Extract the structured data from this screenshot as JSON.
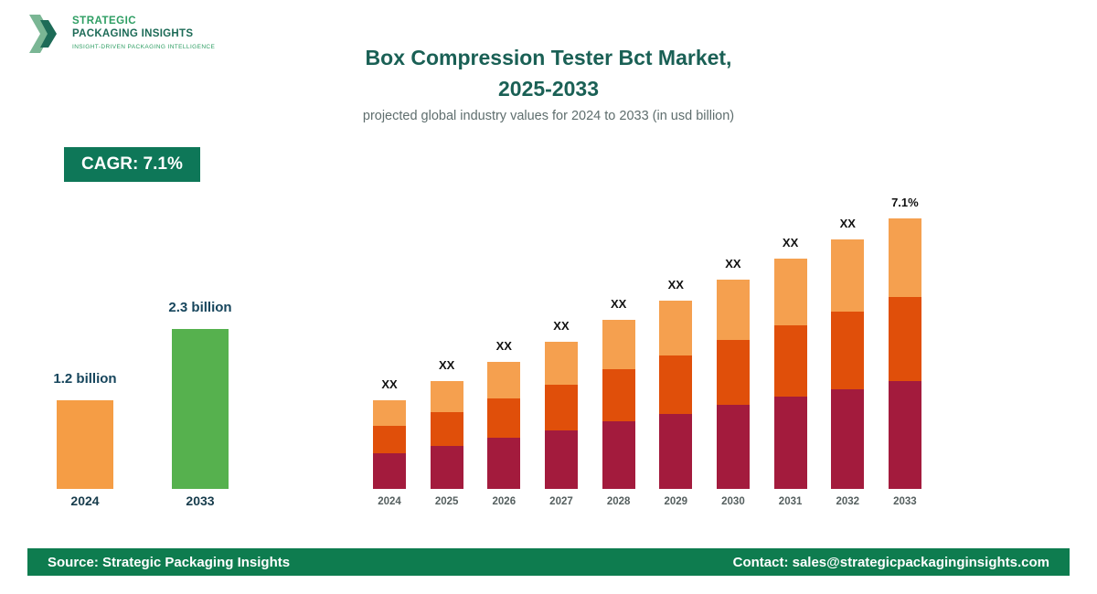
{
  "logo": {
    "line1": "STRATEGIC",
    "line2": "PACKAGING INSIGHTS",
    "tagline": "INSIGHT-DRIVEN PACKAGING INTELLIGENCE",
    "chevron_light_color": "#7ab694",
    "chevron_dark_color": "#1d6b57"
  },
  "header": {
    "title_line1": "Box Compression Tester Bct Market,",
    "title_line2": "2025-2033",
    "subtitle": "projected global industry values for 2024 to 2033 (in usd billion)"
  },
  "cagr_badge": {
    "label": "CAGR: 7.1%"
  },
  "summary_chart": {
    "bars": [
      {
        "year": "2024",
        "value_label": "1.2 billion",
        "color": "#f59d45",
        "height": 97
      },
      {
        "year": "2033",
        "value_label": "2.3 billion",
        "color": "#56b14e",
        "height": 175
      }
    ]
  },
  "chart_data": {
    "type": "bar",
    "stacked": true,
    "title": "Box Compression Tester Bct Market, 2025-2033",
    "xlabel": "",
    "ylabel": "usd billion",
    "categories": [
      "2024",
      "2025",
      "2026",
      "2027",
      "2028",
      "2029",
      "2030",
      "2031",
      "2032",
      "2033"
    ],
    "bar_labels": [
      "XX",
      "XX",
      "XX",
      "XX",
      "XX",
      "XX",
      "XX",
      "XX",
      "XX",
      "7.1%"
    ],
    "values_note": "data labels shown as XX; segment values are relative heights estimated from pixels",
    "series": [
      {
        "name": "segment-bottom",
        "color": "#a31b3d",
        "values": [
          39,
          47,
          56,
          64,
          74,
          82,
          92,
          101,
          109,
          118
        ]
      },
      {
        "name": "segment-middle",
        "color": "#e04f0a",
        "values": [
          30,
          37,
          43,
          50,
          57,
          64,
          71,
          78,
          85,
          92
        ]
      },
      {
        "name": "segment-top",
        "color": "#f5a04f",
        "values": [
          28,
          34,
          40,
          47,
          54,
          60,
          66,
          73,
          79,
          86
        ]
      }
    ]
  },
  "footer": {
    "source": "Source: Strategic Packaging Insights",
    "contact": "Contact: sales@strategicpackaginginsights.com"
  }
}
